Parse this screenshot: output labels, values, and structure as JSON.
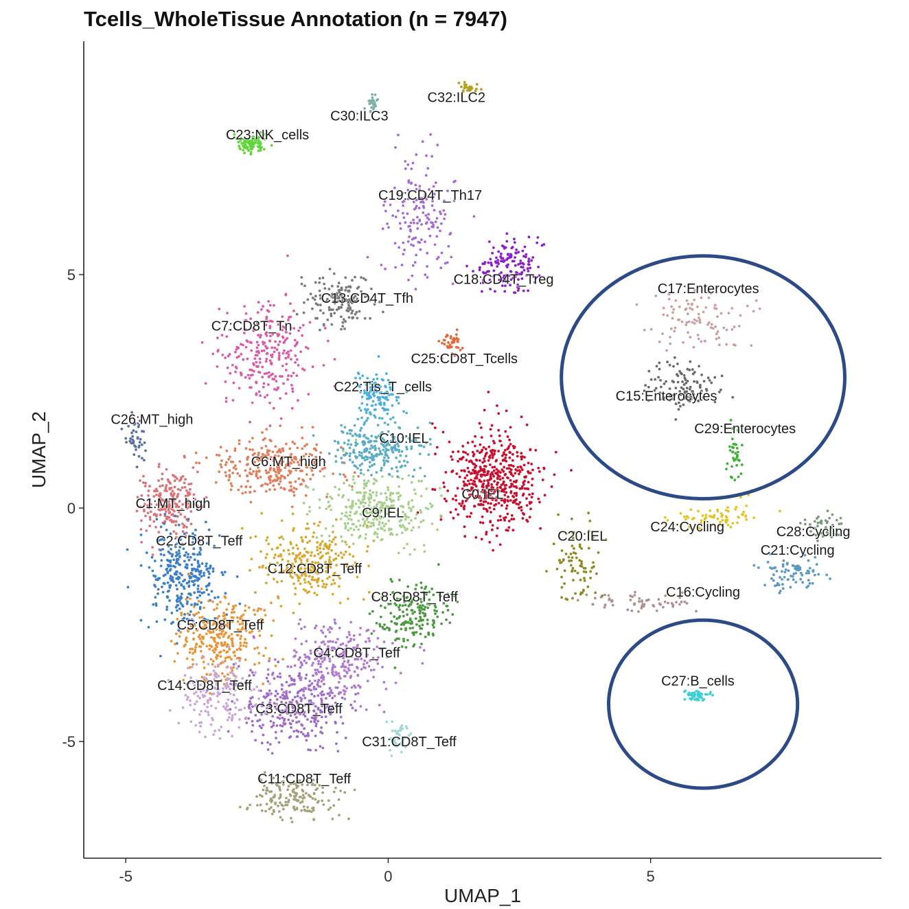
{
  "chart_data": {
    "type": "scatter",
    "title": "Tcells_WholeTissue Annotation (n = 7947)",
    "xlabel": "UMAP_1",
    "ylabel": "UMAP_2",
    "xlim": [
      -5.8,
      9.4
    ],
    "ylim": [
      -7.5,
      10
    ],
    "xticks": [
      -5,
      0,
      5
    ],
    "yticks": [
      -5,
      0,
      5
    ],
    "xtick_labels": [
      "-5",
      "0",
      "5"
    ],
    "ytick_labels": [
      "-5",
      "0",
      "5"
    ],
    "clusters": [
      {
        "label": "C0:IEL",
        "color": "#c8102e",
        "x": 2.0,
        "y": 0.6,
        "sx": 0.8,
        "sy": 0.9,
        "n": 520
      },
      {
        "label": "C1:MT_high",
        "color": "#d9757a",
        "x": -4.2,
        "y": 0.1,
        "sx": 0.5,
        "sy": 0.6,
        "n": 220
      },
      {
        "label": "C2:CD8T_Teff",
        "color": "#3d7fc6",
        "x": -3.9,
        "y": -1.5,
        "sx": 0.7,
        "sy": 0.9,
        "n": 320
      },
      {
        "label": "C3:CD8T_Teff",
        "color": "#9d6cc9",
        "x": -1.8,
        "y": -4.3,
        "sx": 0.9,
        "sy": 0.8,
        "n": 300
      },
      {
        "label": "C4:CD8T_Teff",
        "color": "#b07ad0",
        "x": -1.0,
        "y": -3.3,
        "sx": 0.9,
        "sy": 0.8,
        "n": 280
      },
      {
        "label": "C5:CD8T_Teff",
        "color": "#e8963a",
        "x": -3.2,
        "y": -2.8,
        "sx": 0.8,
        "sy": 0.8,
        "n": 300
      },
      {
        "label": "C6:MT_high",
        "color": "#e07f5c",
        "x": -2.2,
        "y": 0.9,
        "sx": 1.0,
        "sy": 0.6,
        "n": 280
      },
      {
        "label": "C7:CD8T_Tn",
        "color": "#d95ca6",
        "x": -2.3,
        "y": 3.3,
        "sx": 0.8,
        "sy": 1.0,
        "n": 260
      },
      {
        "label": "C8:CD8T_Teff",
        "color": "#4b9a40",
        "x": 0.5,
        "y": -2.3,
        "sx": 0.6,
        "sy": 0.6,
        "n": 180
      },
      {
        "label": "C9:IEL",
        "color": "#a8d08d",
        "x": -0.3,
        "y": 0.0,
        "sx": 1.0,
        "sy": 0.7,
        "n": 300
      },
      {
        "label": "C10:IEL",
        "color": "#5aaec4",
        "x": -0.2,
        "y": 1.3,
        "sx": 0.8,
        "sy": 0.5,
        "n": 240
      },
      {
        "label": "C11:CD8T_Teff",
        "color": "#a3a37a",
        "x": -1.8,
        "y": -6.2,
        "sx": 0.7,
        "sy": 0.4,
        "n": 160
      },
      {
        "label": "C12:CD8T_Teff",
        "color": "#d9a830",
        "x": -1.5,
        "y": -1.2,
        "sx": 0.8,
        "sy": 0.7,
        "n": 260
      },
      {
        "label": "C13:CD4T_Tfh",
        "color": "#7a7a7a",
        "x": -0.9,
        "y": 4.4,
        "sx": 0.6,
        "sy": 0.5,
        "n": 150
      },
      {
        "label": "C14:CD8T_Teff",
        "color": "#c9a7d8",
        "x": -3.2,
        "y": -4.0,
        "sx": 0.7,
        "sy": 0.7,
        "n": 170
      },
      {
        "label": "C15:Enterocytes",
        "color": "#6a6a6a",
        "x": 5.6,
        "y": 2.6,
        "sx": 0.6,
        "sy": 0.5,
        "n": 110
      },
      {
        "label": "C16:Cycling",
        "color": "#b08f8f",
        "x": 4.8,
        "y": -2.0,
        "sx": 1.0,
        "sy": 0.2,
        "n": 60
      },
      {
        "label": "C17:Enterocytes",
        "color": "#c9a0a0",
        "x": 5.9,
        "y": 4.0,
        "sx": 0.8,
        "sy": 0.6,
        "n": 100
      },
      {
        "label": "C18:CD4T_Treg",
        "color": "#8a1fc9",
        "x": 2.3,
        "y": 5.2,
        "sx": 0.5,
        "sy": 0.5,
        "n": 150
      },
      {
        "label": "C19:CD4T_Th17",
        "color": "#a56ad4",
        "x": 0.6,
        "y": 6.2,
        "sx": 0.6,
        "sy": 1.3,
        "n": 160
      },
      {
        "label": "C20:IEL",
        "color": "#8c8a20",
        "x": 3.6,
        "y": -1.2,
        "sx": 0.4,
        "sy": 0.7,
        "n": 80
      },
      {
        "label": "C21:Cycling",
        "color": "#5a9ac4",
        "x": 7.7,
        "y": -1.4,
        "sx": 0.5,
        "sy": 0.3,
        "n": 80
      },
      {
        "label": "C22:Tis_T_cells",
        "color": "#4ab0e0",
        "x": -0.2,
        "y": 2.4,
        "sx": 0.4,
        "sy": 0.6,
        "n": 120
      },
      {
        "label": "C23:NK_cells",
        "color": "#5fd63a",
        "x": -2.6,
        "y": 7.8,
        "sx": 0.3,
        "sy": 0.15,
        "n": 90
      },
      {
        "label": "C24:Cycling",
        "color": "#e3c423",
        "x": 6.2,
        "y": -0.2,
        "sx": 0.6,
        "sy": 0.3,
        "n": 70
      },
      {
        "label": "C25:CD8T_Tcells",
        "color": "#e06a3a",
        "x": 1.2,
        "y": 3.5,
        "sx": 0.2,
        "sy": 0.2,
        "n": 40
      },
      {
        "label": "C26:MT_high",
        "color": "#5a6fa0",
        "x": -4.8,
        "y": 1.5,
        "sx": 0.2,
        "sy": 0.4,
        "n": 40
      },
      {
        "label": "C27:B_cells",
        "color": "#3ad0d4",
        "x": 5.9,
        "y": -4.0,
        "sx": 0.25,
        "sy": 0.1,
        "n": 45
      },
      {
        "label": "C28:Cycling",
        "color": "#7a9a7a",
        "x": 8.3,
        "y": -0.4,
        "sx": 0.4,
        "sy": 0.3,
        "n": 40
      },
      {
        "label": "C29:Enterocytes",
        "color": "#3cb030",
        "x": 6.6,
        "y": 1.2,
        "sx": 0.15,
        "sy": 0.5,
        "n": 35
      },
      {
        "label": "C30:ILC3",
        "color": "#7fb0a8",
        "x": -0.3,
        "y": 8.7,
        "sx": 0.08,
        "sy": 0.15,
        "n": 25
      },
      {
        "label": "C31:CD8T_Teff",
        "color": "#a0d8d4",
        "x": 0.2,
        "y": -4.9,
        "sx": 0.2,
        "sy": 0.3,
        "n": 40
      },
      {
        "label": "C32:ILC2",
        "color": "#b0a020",
        "x": 1.5,
        "y": 9.0,
        "sx": 0.15,
        "sy": 0.1,
        "n": 25
      }
    ],
    "label_positions": [
      {
        "label": "C0:IEL",
        "x": 1.8,
        "y": 0.2
      },
      {
        "label": "C1:MT_high",
        "x": -4.1,
        "y": 0.0
      },
      {
        "label": "C2:CD8T_Teff",
        "x": -3.6,
        "y": -0.8
      },
      {
        "label": "C3:CD8T_Teff",
        "x": -1.7,
        "y": -4.4
      },
      {
        "label": "C4:CD8T_Teff",
        "x": -0.6,
        "y": -3.2
      },
      {
        "label": "C5:CD8T_Teff",
        "x": -3.2,
        "y": -2.6
      },
      {
        "label": "C6:MT_high",
        "x": -1.9,
        "y": 0.9
      },
      {
        "label": "C7:CD8T_Tn",
        "x": -2.6,
        "y": 3.8
      },
      {
        "label": "C8:CD8T_Teff",
        "x": 0.5,
        "y": -2.0
      },
      {
        "label": "C9:IEL",
        "x": -0.1,
        "y": -0.2
      },
      {
        "label": "C10:IEL",
        "x": 0.3,
        "y": 1.4
      },
      {
        "label": "C11:CD8T_Teff",
        "x": -1.6,
        "y": -5.9
      },
      {
        "label": "C12:CD8T_Teff",
        "x": -1.4,
        "y": -1.4
      },
      {
        "label": "C13:CD4T_Tfh",
        "x": -0.4,
        "y": 4.4
      },
      {
        "label": "C14:CD8T_Teff",
        "x": -3.5,
        "y": -3.9
      },
      {
        "label": "C15:Enterocytes",
        "x": 5.3,
        "y": 2.3
      },
      {
        "label": "C16:Cycling",
        "x": 6.0,
        "y": -1.9
      },
      {
        "label": "C17:Enterocytes",
        "x": 6.1,
        "y": 4.6
      },
      {
        "label": "C18:CD4T_Treg",
        "x": 2.2,
        "y": 4.8
      },
      {
        "label": "C19:CD4T_Th17",
        "x": 0.8,
        "y": 6.6
      },
      {
        "label": "C20:IEL",
        "x": 3.7,
        "y": -0.7
      },
      {
        "label": "C21:Cycling",
        "x": 7.8,
        "y": -1.0
      },
      {
        "label": "C22:Tis_T_cells",
        "x": -0.1,
        "y": 2.5
      },
      {
        "label": "C23:NK_cells",
        "x": -2.3,
        "y": 7.9
      },
      {
        "label": "C24:Cycling",
        "x": 5.7,
        "y": -0.5
      },
      {
        "label": "C25:CD8T_Tcells",
        "x": 1.45,
        "y": 3.1
      },
      {
        "label": "C26:MT_high",
        "x": -4.5,
        "y": 1.8
      },
      {
        "label": "C27:B_cells",
        "x": 5.9,
        "y": -3.8
      },
      {
        "label": "C28:Cycling",
        "x": 8.1,
        "y": -0.6
      },
      {
        "label": "C29:Enterocytes",
        "x": 6.8,
        "y": 1.6
      },
      {
        "label": "C30:ILC3",
        "x": -0.55,
        "y": 8.3
      },
      {
        "label": "C31:CD8T_Teff",
        "x": 0.4,
        "y": -5.1
      },
      {
        "label": "C32:ILC2",
        "x": 1.3,
        "y": 8.7
      }
    ],
    "annotations": [
      {
        "type": "circle",
        "cx": 6.0,
        "cy": 2.8,
        "rx": 2.7,
        "ry": 2.6,
        "color": "#2b4a86"
      },
      {
        "type": "circle",
        "cx": 6.0,
        "cy": -4.2,
        "rx": 1.8,
        "ry": 1.8,
        "color": "#2b4a86"
      }
    ]
  }
}
